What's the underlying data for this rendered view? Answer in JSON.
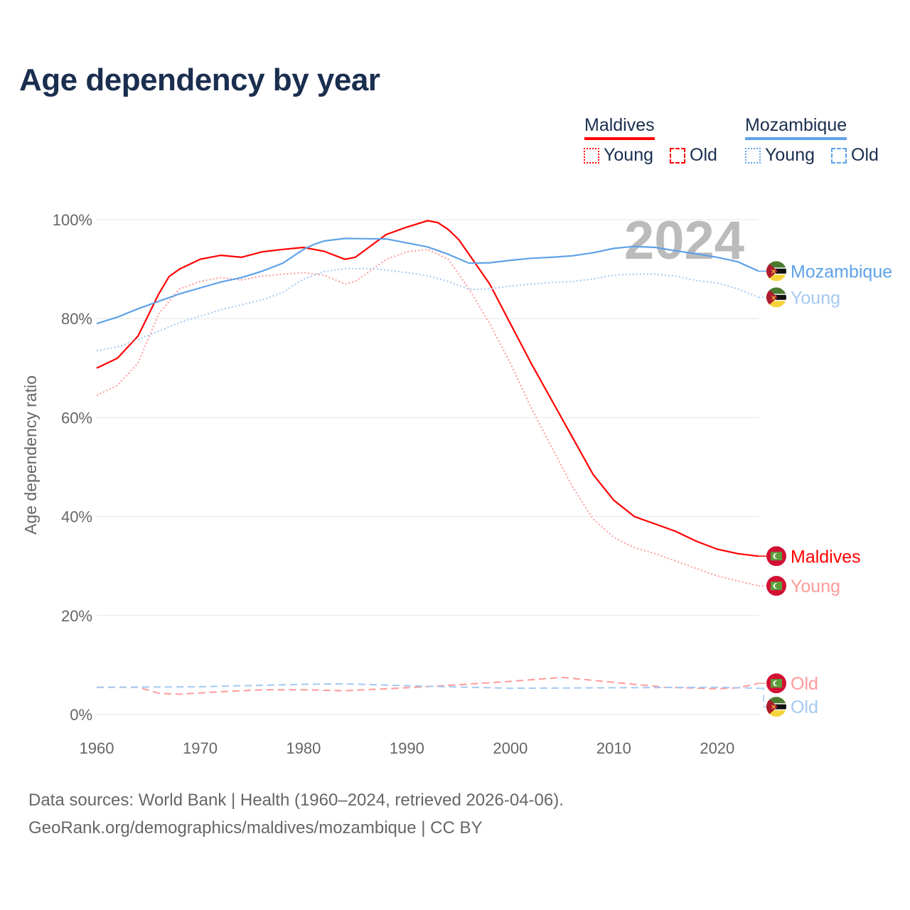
{
  "title": "Age dependency by year",
  "legend": {
    "groups": [
      {
        "country": "Maldives",
        "color": "#ff0000",
        "young_label": "Young",
        "old_label": "Old"
      },
      {
        "country": "Mozambique",
        "color": "#5ea2e8",
        "young_label": "Young",
        "old_label": "Old"
      }
    ]
  },
  "source": {
    "line1": "Data sources: World Bank | Health (1960–2024, retrieved 2026-04-06).",
    "line2": "GeoRank.org/demographics/maldives/mozambique | CC BY"
  },
  "chart_data": {
    "type": "line",
    "title": "Age dependency by year",
    "xlabel": "",
    "ylabel": "Age dependency ratio",
    "year_watermark": "2024",
    "xlim": [
      1960,
      2024
    ],
    "ylim": [
      0,
      100
    ],
    "x_ticks": [
      1960,
      1970,
      1980,
      1990,
      2000,
      2010,
      2020
    ],
    "y_ticks": [
      0,
      20,
      40,
      60,
      80,
      100
    ],
    "y_tick_labels": [
      "0%",
      "20%",
      "40%",
      "60%",
      "80%",
      "100%"
    ],
    "grid": true,
    "series": [
      {
        "name": "Maldives",
        "end_label": "Maldives",
        "country": "maldives",
        "style": "solid",
        "color": "#ff0000",
        "x": [
          1960,
          1962,
          1964,
          1966,
          1967,
          1968,
          1970,
          1972,
          1974,
          1976,
          1978,
          1980,
          1982,
          1984,
          1985,
          1988,
          1990,
          1992,
          1993,
          1994,
          1995,
          1996,
          1998,
          2000,
          2002,
          2004,
          2006,
          2008,
          2010,
          2012,
          2014,
          2016,
          2018,
          2020,
          2022,
          2024
        ],
        "y": [
          70,
          72,
          76.5,
          85,
          88.5,
          90,
          92,
          92.8,
          92.4,
          93.5,
          94,
          94.4,
          93.6,
          92,
          92.4,
          97,
          98.5,
          99.8,
          99.4,
          98,
          96,
          93,
          87,
          79,
          71,
          63.5,
          56,
          48.5,
          43.3,
          40,
          38.5,
          37,
          35,
          33.4,
          32.5,
          32
        ]
      },
      {
        "name": "Maldives Young",
        "end_label": "Young",
        "country": "maldives",
        "style": "dotted",
        "color": "#ff9a9a",
        "x": [
          1960,
          1962,
          1964,
          1966,
          1968,
          1970,
          1972,
          1974,
          1976,
          1978,
          1980,
          1982,
          1984,
          1985,
          1988,
          1990,
          1992,
          1994,
          1996,
          1998,
          2000,
          2002,
          2004,
          2006,
          2008,
          2010,
          2012,
          2014,
          2016,
          2018,
          2020,
          2022,
          2024
        ],
        "y": [
          64.5,
          66.5,
          71,
          81,
          86,
          87.5,
          88.3,
          87.8,
          88.6,
          89,
          89.3,
          88.8,
          87,
          87.5,
          92,
          93.5,
          94,
          92,
          86,
          79,
          71,
          62,
          54,
          46,
          39.5,
          35.8,
          33.7,
          32.5,
          31,
          29.5,
          28,
          27,
          26
        ]
      },
      {
        "name": "Maldives Old",
        "end_label": "Old",
        "country": "maldives",
        "style": "dashed",
        "color": "#ff9a9a",
        "x": [
          1960,
          1964,
          1966,
          1968,
          1972,
          1976,
          1980,
          1984,
          1990,
          1995,
          2000,
          2005,
          2010,
          2015,
          2020,
          2022,
          2024
        ],
        "y": [
          5.5,
          5.5,
          4.3,
          4.1,
          4.6,
          5,
          5,
          4.8,
          5.4,
          6,
          6.7,
          7.5,
          6.5,
          5.5,
          5.2,
          5.4,
          6.3
        ]
      },
      {
        "name": "Mozambique",
        "end_label": "Mozambique",
        "country": "mozambique",
        "style": "solid",
        "color": "#5ea2e8",
        "x": [
          1960,
          1962,
          1964,
          1966,
          1968,
          1970,
          1972,
          1974,
          1976,
          1978,
          1980,
          1981,
          1982,
          1984,
          1988,
          1990,
          1992,
          1994,
          1996,
          1998,
          2000,
          2002,
          2004,
          2006,
          2008,
          2010,
          2012,
          2014,
          2016,
          2018,
          2020,
          2022,
          2024
        ],
        "y": [
          79,
          80.3,
          82,
          83.5,
          85,
          86.2,
          87.4,
          88.3,
          89.6,
          91.2,
          94,
          95,
          95.7,
          96.2,
          96.1,
          95.3,
          94.5,
          93,
          91.2,
          91.3,
          91.8,
          92.2,
          92.4,
          92.7,
          93.3,
          94.2,
          94.6,
          94.4,
          93.7,
          93.1,
          92.4,
          91.5,
          89.6
        ]
      },
      {
        "name": "Mozambique Young",
        "end_label": "Young",
        "country": "mozambique",
        "style": "dotted",
        "color": "#a4c9f2",
        "x": [
          1960,
          1962,
          1964,
          1966,
          1968,
          1970,
          1972,
          1974,
          1976,
          1978,
          1980,
          1982,
          1984,
          1987,
          1990,
          1992,
          1994,
          1996,
          1998,
          2000,
          2002,
          2004,
          2006,
          2008,
          2010,
          2012,
          2014,
          2016,
          2018,
          2020,
          2022,
          2024
        ],
        "y": [
          73.5,
          74.3,
          75.8,
          77.5,
          79.2,
          80.5,
          81.8,
          82.8,
          83.8,
          85.3,
          88,
          89.5,
          90.1,
          90.1,
          89.3,
          88.7,
          87.5,
          85.9,
          86,
          86.6,
          87,
          87.3,
          87.5,
          88,
          88.8,
          89,
          89,
          88.6,
          87.7,
          87.2,
          86,
          84.3
        ]
      },
      {
        "name": "Mozambique Old",
        "end_label": "Old",
        "country": "mozambique",
        "style": "dashed",
        "color": "#a4c9f2",
        "x": [
          1960,
          1970,
          1980,
          1984,
          1990,
          2000,
          2010,
          2020,
          2024
        ],
        "y": [
          5.5,
          5.6,
          6.1,
          6.2,
          5.8,
          5.3,
          5.4,
          5.5,
          5.3
        ]
      }
    ]
  }
}
